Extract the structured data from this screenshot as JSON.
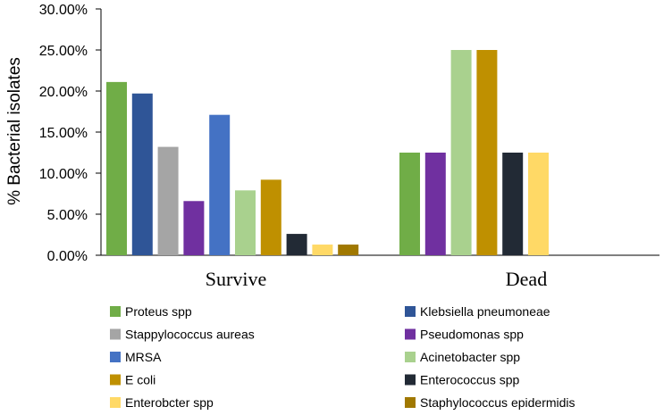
{
  "chart_data": {
    "type": "bar",
    "title": "",
    "xlabel": "",
    "ylabel": "% Bacterial isolates",
    "ylim": [
      0,
      30
    ],
    "y_ticks": [
      "0.00%",
      "5.00%",
      "10.00%",
      "15.00%",
      "20.00%",
      "25.00%",
      "30.00%"
    ],
    "grid": false,
    "legend_position": "bottom",
    "categories": [
      "Survive",
      "Dead"
    ],
    "series": [
      {
        "name": "Proteus spp",
        "color": "#70AD47",
        "values": [
          21.1,
          12.5
        ]
      },
      {
        "name": "Klebsiella pneumoneae",
        "color": "#2F5597",
        "values": [
          19.7,
          null
        ]
      },
      {
        "name": "Stappylococcus aureas",
        "color": "#A5A5A5",
        "values": [
          13.2,
          null
        ]
      },
      {
        "name": "Pseudomonas spp",
        "color": "#7030A0",
        "values": [
          6.6,
          12.5
        ]
      },
      {
        "name": "MRSA",
        "color": "#4472C4",
        "values": [
          17.1,
          null
        ]
      },
      {
        "name": "Acinetobacter spp",
        "color": "#A9D18E",
        "values": [
          7.9,
          25.0
        ]
      },
      {
        "name": "E coli",
        "color": "#BF9000",
        "values": [
          9.2,
          25.0
        ]
      },
      {
        "name": "Enterococcus spp",
        "color": "#222A35",
        "values": [
          2.6,
          12.5
        ]
      },
      {
        "name": "Enterobcter spp",
        "color": "#FFD966",
        "values": [
          1.3,
          12.5
        ]
      },
      {
        "name": "Staphylococcus epidermidis",
        "color": "#A07800",
        "values": [
          1.3,
          null
        ]
      }
    ]
  }
}
